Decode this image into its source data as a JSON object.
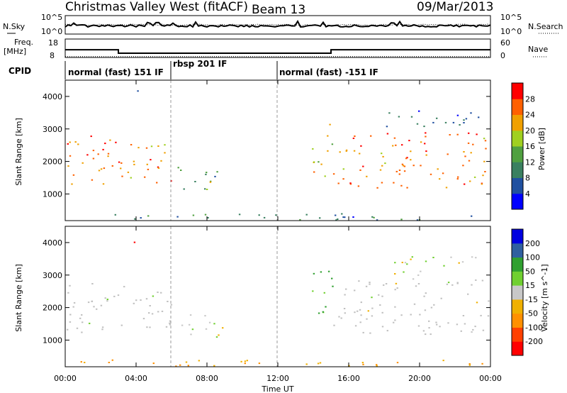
{
  "header": {
    "title": "Christmas Valley West (fitACF)",
    "beam": "Beam 13",
    "date": "09/Mar/2013"
  },
  "noise_panel": {
    "left_label": "N.Sky",
    "right_label": "N.Search",
    "left_ticks": [
      "10^5",
      "10^0"
    ],
    "right_ticks": [
      "10^5",
      "10^0"
    ]
  },
  "freq_panel": {
    "left_label_1": "Freq.",
    "left_label_2": "[MHz]",
    "right_label": "Nave",
    "left_ticks": [
      "18",
      "8"
    ],
    "right_ticks": [
      "60",
      "0"
    ],
    "freq_mhz": [
      [
        0,
        12.2
      ],
      [
        3,
        10.3
      ],
      [
        15,
        12.2
      ],
      [
        24,
        12.2
      ]
    ],
    "nave": [
      [
        0,
        3
      ],
      [
        24,
        3
      ]
    ]
  },
  "cpid": {
    "label": "CPID",
    "modes": [
      {
        "text": "normal (fast) 151 IF",
        "start": 0
      },
      {
        "text": "rbsp 201 IF",
        "start": 6
      },
      {
        "text": "normal (fast) -151 IF",
        "start": 12
      }
    ]
  },
  "x_axis": {
    "label": "Time UT",
    "ticks": [
      "00:00",
      "04:00",
      "08:00",
      "12:00",
      "16:00",
      "20:00",
      "00:00"
    ],
    "range_hours": [
      0,
      24
    ]
  },
  "power_panel": {
    "ylabel": "Slant Range [km]",
    "yticks": [
      "1000",
      "2000",
      "3000",
      "4000"
    ],
    "colorbar_label": "Power [dB]",
    "colorbar_ticks": [
      "4",
      "8",
      "12",
      "16",
      "20",
      "24",
      "28"
    ]
  },
  "velocity_panel": {
    "ylabel": "Slant Range [km]",
    "yticks": [
      "1000",
      "2000",
      "3000",
      "4000"
    ],
    "colorbar_label": "Velocity [m s^-1]",
    "colorbar_ticks": [
      "-200",
      "-100",
      "-50",
      "-15",
      "15",
      "50",
      "100",
      "200"
    ]
  },
  "chart_data": {
    "type": "heatmap",
    "title": "Christmas Valley West (fitACF)",
    "xlabel": "Time UT",
    "ylabel": "Slant Range [km]",
    "x_range_hours": [
      0,
      24
    ],
    "y_range_km": [
      180,
      4500
    ],
    "power_scale_db": [
      0,
      30
    ],
    "velocity_scale_ms": [
      -250,
      250
    ],
    "colors": {
      "power": [
        "#0000ff",
        "#2050a0",
        "#3a8060",
        "#50a040",
        "#a0d020",
        "#f0a000",
        "#ff6000",
        "#ff0000"
      ],
      "velocity": [
        "#ff0000",
        "#ff4000",
        "#ff9000",
        "#f0b000",
        "#c8c8c8",
        "#70d030",
        "#30a030",
        "#3060a0",
        "#0000e0"
      ],
      "ground_scatter": "#c0c0c0"
    },
    "scatter_regions": [
      {
        "t0": 0.0,
        "t1": 3.0,
        "r0": 1200,
        "r1": 2800,
        "power_db": 24,
        "velocity_ms": 0,
        "ground": true
      },
      {
        "t0": 3.0,
        "t1": 6.0,
        "r0": 1350,
        "r1": 2700,
        "power_db": 22,
        "velocity_ms": 0,
        "ground": true
      },
      {
        "t0": 6.3,
        "t1": 8.6,
        "r0": 1100,
        "r1": 1850,
        "power_db": 12,
        "velocity_ms": 20,
        "ground": false
      },
      {
        "t0": 7.9,
        "t1": 8.9,
        "r0": 1050,
        "r1": 1450,
        "power_db": 20,
        "velocity_ms": -60,
        "ground": false
      },
      {
        "t0": 3.5,
        "t1": 4.1,
        "r0": 3800,
        "r1": 4200,
        "power_db": 6,
        "velocity_ms": -220,
        "ground": false
      },
      {
        "t0": 13.9,
        "t1": 15.1,
        "r0": 1500,
        "r1": 3200,
        "power_db": 18,
        "velocity_ms": 60,
        "ground": false
      },
      {
        "t0": 15.1,
        "t1": 24.0,
        "r0": 1200,
        "r1": 2900,
        "power_db": 23,
        "velocity_ms": 0,
        "ground": true
      },
      {
        "t0": 18.0,
        "t1": 23.5,
        "r0": 3000,
        "r1": 3600,
        "power_db": 6,
        "velocity_ms": 5,
        "ground": false
      },
      {
        "t0": 0.0,
        "t1": 24.0,
        "r0": 200,
        "r1": 420,
        "power_db": 8,
        "velocity_ms": -60,
        "ground": false
      }
    ]
  }
}
